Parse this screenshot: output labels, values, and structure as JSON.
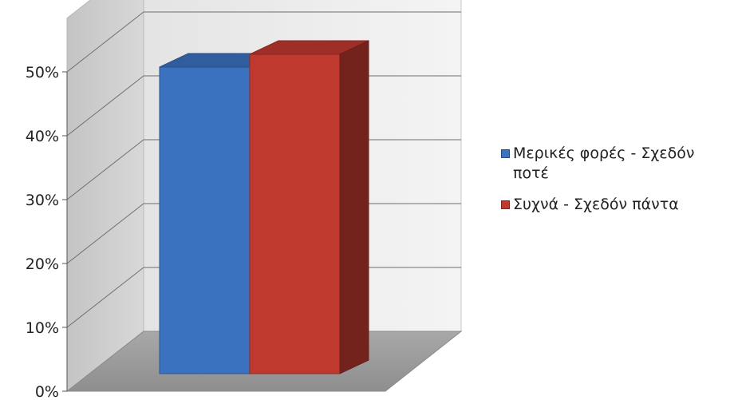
{
  "chart_data": {
    "type": "bar",
    "title": "",
    "xlabel": "",
    "ylabel": "",
    "categories": [
      ""
    ],
    "series": [
      {
        "name": "Μερικές φορές - Σχεδόν ποτέ",
        "values": [
          48
        ],
        "color": "#3a72c0"
      },
      {
        "name": "Συχνά - Σχεδόν πάντα",
        "values": [
          50
        ],
        "color": "#c0392f"
      }
    ],
    "ylim": [
      0,
      50
    ],
    "yticks": [
      "0%",
      "10%",
      "20%",
      "30%",
      "40%",
      "50%"
    ],
    "grid": true,
    "three_d": true,
    "legend_position": "right"
  }
}
